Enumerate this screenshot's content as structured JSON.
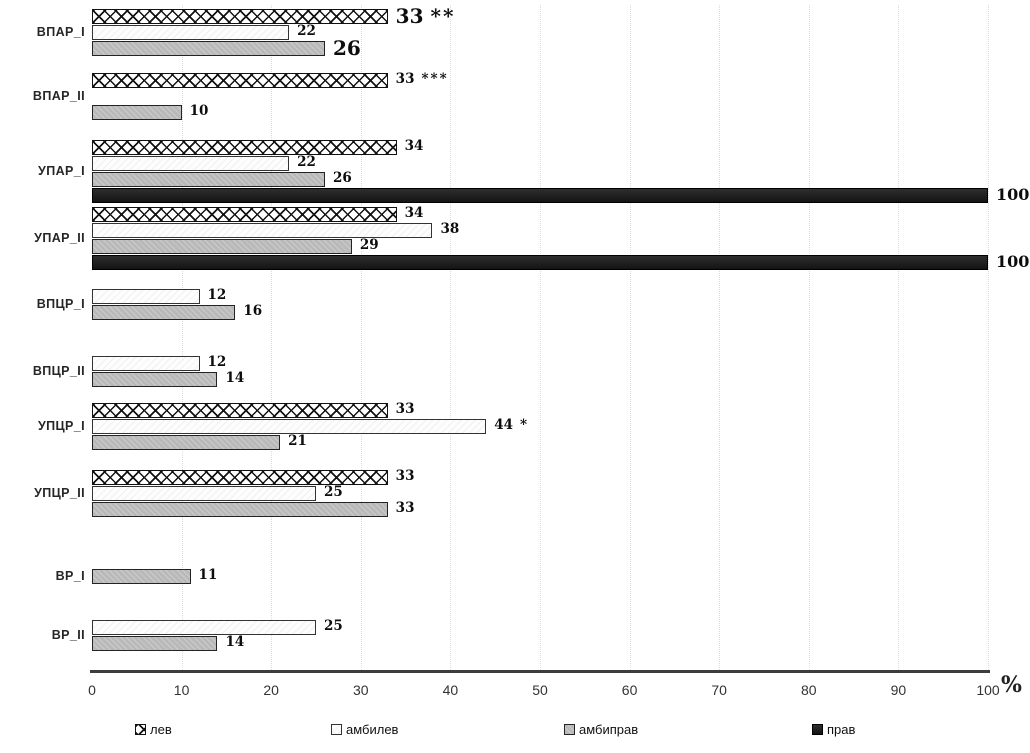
{
  "chart_data": {
    "type": "bar",
    "orientation": "horizontal-grouped",
    "title": "",
    "xlabel": "",
    "ylabel": "",
    "x_axis": {
      "min": 0,
      "max": 100,
      "ticks": [
        0,
        10,
        20,
        30,
        40,
        50,
        60,
        70,
        80,
        90,
        100
      ],
      "unit_suffix": "%",
      "gridlines": "dotted"
    },
    "legend_position": "bottom",
    "series_order": [
      "лев",
      "амбилев",
      "амбиправ",
      "прав"
    ],
    "legend": [
      {
        "name": "лев",
        "swatch": "crosshatch-icon"
      },
      {
        "name": "амбилев",
        "swatch": "white-square-icon"
      },
      {
        "name": "амбиправ",
        "swatch": "gray-square-icon"
      },
      {
        "name": "прав",
        "swatch": "black-square-icon"
      }
    ],
    "series_colors": {
      "лев": "#ffffff",
      "амбилев": "#fdfdfd",
      "амбиправ": "#b9b9b9",
      "прав": "#1a1a1a",
      "crosshatch_line": "#111111"
    },
    "categories": [
      "ВПАР_I",
      "ВПАР_II",
      "УПАР_I",
      "УПАР_II",
      "ВПЦР_I",
      "ВПЦР_II",
      "УПЦР_I",
      "УПЦР_II",
      "ВР_I",
      "ВР_II"
    ],
    "groups": [
      {
        "category": "ВПАР_I",
        "bars": [
          {
            "series": "лев",
            "value": 33,
            "annotation": "**",
            "emphasis": true
          },
          {
            "series": "амбилев",
            "value": 22
          },
          {
            "series": "амбиправ",
            "value": 26,
            "emphasis": true
          }
        ]
      },
      {
        "category": "ВПАР_II",
        "bars": [
          {
            "series": "лев",
            "value": 33,
            "annotation": "***"
          },
          {
            "series": "амбиправ",
            "value": 10
          }
        ]
      },
      {
        "category": "УПАР_I",
        "bars": [
          {
            "series": "лев",
            "value": 34
          },
          {
            "series": "амбилев",
            "value": 22
          },
          {
            "series": "амбиправ",
            "value": 26
          },
          {
            "series": "прав",
            "value": 100
          }
        ]
      },
      {
        "category": "УПАР_II",
        "bars": [
          {
            "series": "лев",
            "value": 34
          },
          {
            "series": "амбилев",
            "value": 38
          },
          {
            "series": "амбиправ",
            "value": 29
          },
          {
            "series": "прав",
            "value": 100
          }
        ]
      },
      {
        "category": "ВПЦР_I",
        "bars": [
          {
            "series": "амбилев",
            "value": 12
          },
          {
            "series": "амбиправ",
            "value": 16
          }
        ]
      },
      {
        "category": "ВПЦР_II",
        "bars": [
          {
            "series": "амбилев",
            "value": 12
          },
          {
            "series": "амбиправ",
            "value": 14
          }
        ]
      },
      {
        "category": "УПЦР_I",
        "bars": [
          {
            "series": "лев",
            "value": 33
          },
          {
            "series": "амбилев",
            "value": 44,
            "annotation": "*"
          },
          {
            "series": "амбиправ",
            "value": 21
          }
        ]
      },
      {
        "category": "УПЦР_II",
        "bars": [
          {
            "series": "лев",
            "value": 33
          },
          {
            "series": "амбилев",
            "value": 25
          },
          {
            "series": "амбиправ",
            "value": 33
          }
        ]
      },
      {
        "category": "ВР_I",
        "bars": [
          {
            "series": "амбиправ",
            "value": 11
          }
        ]
      },
      {
        "category": "ВР_II",
        "bars": [
          {
            "series": "амбилев",
            "value": 25
          },
          {
            "series": "амбиправ",
            "value": 14
          }
        ]
      }
    ]
  }
}
